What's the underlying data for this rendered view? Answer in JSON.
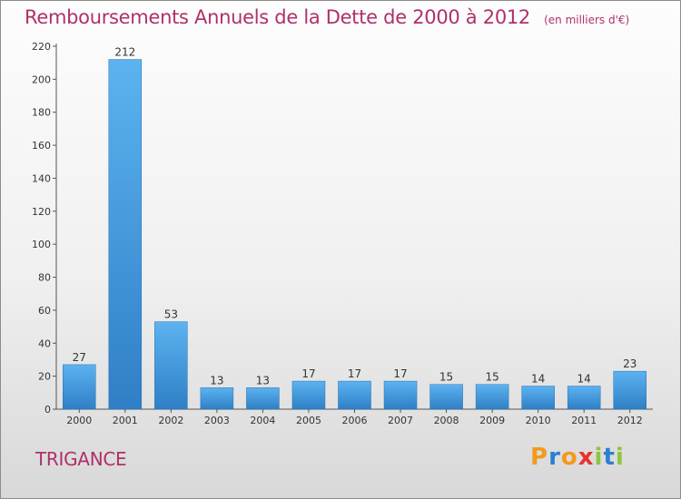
{
  "chart_data": {
    "type": "bar",
    "title": "Remboursements Annuels de la Dette de 2000 à 2012",
    "unit": "(en milliers d'€)",
    "categories": [
      "2000",
      "2001",
      "2002",
      "2003",
      "2004",
      "2005",
      "2006",
      "2007",
      "2008",
      "2009",
      "2010",
      "2011",
      "2012"
    ],
    "values": [
      27,
      212,
      53,
      13,
      13,
      17,
      17,
      17,
      15,
      15,
      14,
      14,
      23
    ],
    "ylim": [
      0,
      220
    ],
    "yticks": [
      0,
      20,
      40,
      60,
      80,
      100,
      120,
      140,
      160,
      180,
      200,
      220
    ],
    "grid": false,
    "bar_color": "#4aa3e6"
  },
  "footer": {
    "commune": "TRIGANCE",
    "logo": "Proxiti"
  },
  "colors": {
    "title": "#b0306a",
    "logo_letters": [
      "#f39a1d",
      "#2b7fd1",
      "#f39a1d",
      "#e8312e",
      "#8cc63f",
      "#2b7fd1",
      "#8cc63f"
    ]
  }
}
